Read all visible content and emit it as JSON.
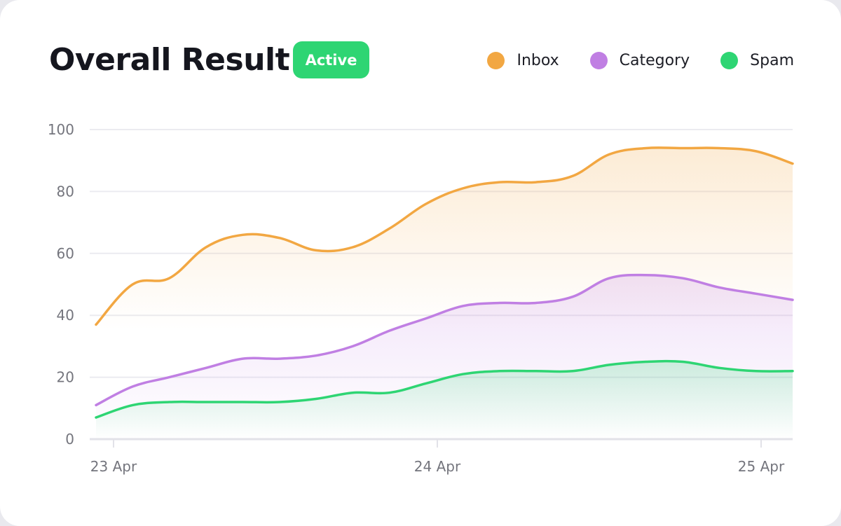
{
  "header": {
    "title": "Overall Result",
    "badge": "Active"
  },
  "chart_data": {
    "type": "area",
    "title": "Overall Result",
    "x_tick_labels": [
      "23 Apr",
      "24 Apr",
      "25 Apr"
    ],
    "y_ticks": [
      0,
      20,
      40,
      60,
      80,
      100
    ],
    "ylim": [
      0,
      100
    ],
    "grid": true,
    "legend_position": "top-right",
    "series": [
      {
        "name": "Inbox",
        "color": "#f2a742",
        "values": [
          37,
          50,
          52,
          62,
          66,
          65,
          61,
          62,
          68,
          76,
          81,
          83,
          83,
          85,
          92,
          94,
          94,
          94,
          93,
          89
        ]
      },
      {
        "name": "Category",
        "color": "#c07fe3",
        "values": [
          11,
          17,
          20,
          23,
          26,
          26,
          27,
          30,
          35,
          39,
          43,
          44,
          44,
          46,
          52,
          53,
          52,
          49,
          47,
          45
        ]
      },
      {
        "name": "Spam",
        "color": "#2ed573",
        "values": [
          7,
          11,
          12,
          12,
          12,
          12,
          13,
          15,
          15,
          18,
          21,
          22,
          22,
          22,
          24,
          25,
          25,
          23,
          22,
          22
        ]
      }
    ]
  }
}
